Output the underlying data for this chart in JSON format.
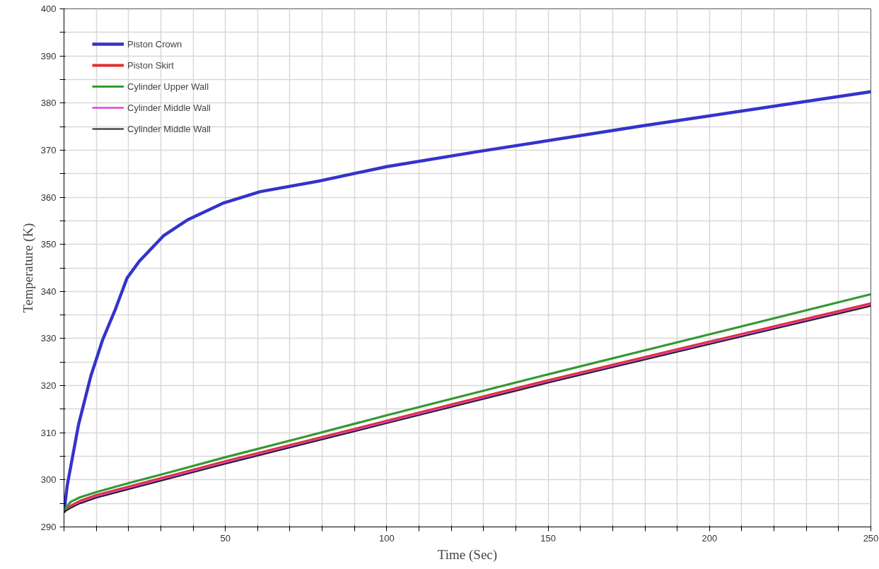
{
  "chart_data": {
    "type": "line",
    "xlabel": "Time (Sec)",
    "ylabel": "Temperature (K)",
    "xlim": [
      0,
      250
    ],
    "ylim": [
      290,
      400
    ],
    "xticks": [
      {
        "value": 0,
        "label": null
      },
      {
        "value": 10,
        "label": null
      },
      {
        "value": 20,
        "label": null
      },
      {
        "value": 30,
        "label": null
      },
      {
        "value": 40,
        "label": null
      },
      50,
      {
        "value": 60,
        "label": null
      },
      {
        "value": 70,
        "label": null
      },
      {
        "value": 80,
        "label": null
      },
      {
        "value": 90,
        "label": null
      },
      100,
      {
        "value": 110,
        "label": null
      },
      {
        "value": 120,
        "label": null
      },
      {
        "value": 130,
        "label": null
      },
      {
        "value": 140,
        "label": null
      },
      150,
      {
        "value": 160,
        "label": null
      },
      {
        "value": 170,
        "label": null
      },
      {
        "value": 180,
        "label": null
      },
      {
        "value": 190,
        "label": null
      },
      200,
      {
        "value": 210,
        "label": null
      },
      {
        "value": 220,
        "label": null
      },
      {
        "value": 230,
        "label": null
      },
      {
        "value": 240,
        "label": null
      },
      250
    ],
    "yticks": [
      290,
      {
        "value": 295,
        "label": null
      },
      300,
      {
        "value": 305,
        "label": null
      },
      310,
      {
        "value": 315,
        "label": null
      },
      320,
      {
        "value": 325,
        "label": null
      },
      330,
      {
        "value": 335,
        "label": null
      },
      340,
      {
        "value": 345,
        "label": null
      },
      350,
      {
        "value": 355,
        "label": null
      },
      360,
      {
        "value": 365,
        "label": null
      },
      370,
      {
        "value": 375,
        "label": null
      },
      380,
      {
        "value": 385,
        "label": null
      },
      390,
      {
        "value": 395,
        "label": null
      },
      400
    ],
    "grid": true,
    "legend": "top left",
    "line_style": "solid",
    "series": [
      {
        "name": "Piston Crown",
        "color": "#3333cc",
        "x": [
          0,
          1,
          4.5,
          8.3,
          12,
          15.8,
          19.5,
          23.3,
          30.8,
          38.3,
          49.5,
          60.8,
          79.5,
          100,
          128.4,
          179.6,
          250
        ],
        "values": [
          293,
          298.8,
          311.7,
          322,
          329.8,
          336,
          342.8,
          346.4,
          351.8,
          355.2,
          358.8,
          361.2,
          363.5,
          366.5,
          369.7,
          375.2,
          382.4
        ]
      },
      {
        "name": "Piston Skirt",
        "color": "#e03030",
        "x": [
          0,
          2,
          5,
          10,
          20,
          30,
          50,
          75,
          100,
          150,
          200,
          250
        ],
        "values": [
          293.2,
          294.4,
          295.5,
          296.7,
          298.5,
          300.3,
          303.9,
          308.2,
          312.5,
          321.1,
          329.3,
          337.4
        ]
      },
      {
        "name": "Cylinder Upper Wall",
        "color": "#339933",
        "x": [
          0,
          2,
          5,
          10,
          20,
          30,
          50,
          75,
          100,
          150,
          200,
          250
        ],
        "values": [
          293.5,
          295.3,
          296.3,
          297.4,
          299.3,
          301.1,
          304.8,
          309.2,
          313.7,
          322.4,
          330.9,
          339.4
        ]
      },
      {
        "name": "Cylinder Middle Wall",
        "color": "#e040e0",
        "x": [
          0,
          2,
          5,
          10,
          20,
          30,
          50,
          75,
          100,
          150,
          200,
          250
        ],
        "values": [
          293.2,
          294.1,
          295.2,
          296.4,
          298.2,
          300,
          303.6,
          307.9,
          312.2,
          320.8,
          329,
          337.1
        ]
      },
      {
        "name": "Cylinder Middle Wall",
        "color": "#222222",
        "x": [
          0,
          2,
          5,
          10,
          20,
          30,
          50,
          75,
          100,
          150,
          200,
          250
        ],
        "values": [
          293.2,
          294,
          295,
          296.2,
          298,
          299.8,
          303.4,
          307.7,
          312,
          320.6,
          328.8,
          336.9
        ]
      }
    ]
  }
}
